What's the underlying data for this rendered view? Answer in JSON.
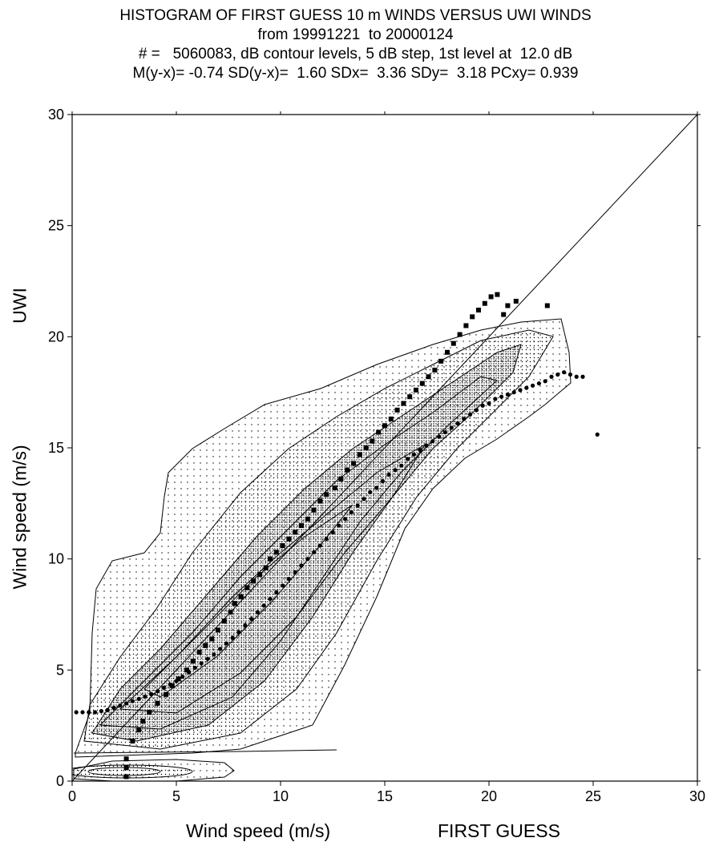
{
  "chart_data": {
    "type": "scatter",
    "title": "HISTOGRAM OF FIRST GUESS 10 m WINDS VERSUS UWI WINDS",
    "subtitle_lines": [
      "from 19991221  to 20000124",
      "# =   5060083, dB contour levels, 5 dB step, 1st level at  12.0 dB",
      "M(y-x)= -0.74 SD(y-x)=  1.60 SDx=  3.36 SDy=  3.18 PCxy= 0.939"
    ],
    "xlabel": "Wind speed (m/s)",
    "xlabel_extra": "FIRST GUESS",
    "ylabel": "Wind speed (m/s)",
    "ylabel_extra": "UWI",
    "xlim": [
      0,
      30
    ],
    "ylim": [
      0,
      30
    ],
    "x_ticks": [
      "0",
      "5",
      "10",
      "15",
      "20",
      "25",
      "30"
    ],
    "y_ticks": [
      "0",
      "5",
      "10",
      "15",
      "20",
      "25",
      "30"
    ],
    "grid": false,
    "series": [
      {
        "marker": "square",
        "x": [
          2.6,
          2.6,
          2.6,
          2.9,
          3.2,
          3.4,
          3.7,
          4.1,
          4.5,
          4.8,
          5.1,
          5.5,
          5.8,
          6.1,
          6.4,
          6.7,
          7.0,
          7.3,
          7.6,
          7.8,
          8.1,
          8.4,
          8.7,
          9.0,
          9.3,
          9.5,
          9.8,
          10.1,
          10.4,
          10.7,
          11.0,
          11.3,
          11.6,
          11.9,
          12.2,
          12.6,
          12.9,
          13.2,
          13.5,
          13.8,
          14.1,
          14.4,
          14.7,
          15.0,
          15.3,
          15.6,
          15.9,
          16.2,
          16.5,
          16.8,
          17.1,
          17.4,
          17.7,
          18.0,
          18.3,
          18.6,
          18.9,
          19.2,
          19.5,
          19.8,
          20.1,
          20.4,
          20.7,
          20.9,
          21.3,
          22.8
        ],
        "y": [
          0.2,
          0.6,
          1.0,
          1.8,
          2.3,
          2.7,
          3.1,
          3.5,
          3.9,
          4.3,
          4.6,
          5.0,
          5.4,
          5.8,
          6.1,
          6.4,
          6.8,
          7.2,
          7.6,
          8.0,
          8.3,
          8.7,
          9.0,
          9.3,
          9.6,
          10.0,
          10.3,
          10.6,
          10.9,
          11.2,
          11.5,
          11.8,
          12.2,
          12.6,
          12.9,
          13.2,
          13.6,
          14.0,
          14.3,
          14.7,
          15.0,
          15.3,
          15.7,
          16.0,
          16.3,
          16.7,
          17.0,
          17.3,
          17.6,
          17.9,
          18.2,
          18.5,
          18.9,
          19.3,
          19.7,
          20.1,
          20.5,
          20.9,
          21.2,
          21.5,
          21.8,
          21.9,
          21.0,
          21.4,
          21.6,
          21.4
        ]
      },
      {
        "marker": "circle",
        "x": [
          0.2,
          0.5,
          0.8,
          1.1,
          1.4,
          1.7,
          2.0,
          2.3,
          2.6,
          2.9,
          3.2,
          3.5,
          3.8,
          4.1,
          4.4,
          4.7,
          5.0,
          5.3,
          5.6,
          5.9,
          6.2,
          6.5,
          6.8,
          7.1,
          7.4,
          7.7,
          8.0,
          8.3,
          8.6,
          8.9,
          9.2,
          9.5,
          9.8,
          10.1,
          10.4,
          10.7,
          11.0,
          11.3,
          11.6,
          11.9,
          12.2,
          12.5,
          12.8,
          13.1,
          13.4,
          13.7,
          14.0,
          14.3,
          14.6,
          14.9,
          15.2,
          15.5,
          15.8,
          16.1,
          16.4,
          16.7,
          17.0,
          17.3,
          17.6,
          17.9,
          18.2,
          18.5,
          18.8,
          19.1,
          19.4,
          19.7,
          20.0,
          20.3,
          20.6,
          20.9,
          21.2,
          21.5,
          21.8,
          22.1,
          22.4,
          22.7,
          23.0,
          23.3,
          23.6,
          23.9,
          24.2,
          24.5,
          25.2
        ],
        "y": [
          3.1,
          3.1,
          3.1,
          3.1,
          3.15,
          3.2,
          3.3,
          3.4,
          3.5,
          3.6,
          3.7,
          3.8,
          3.9,
          4.05,
          4.2,
          4.35,
          4.5,
          4.7,
          4.9,
          5.1,
          5.3,
          5.5,
          5.7,
          5.95,
          6.2,
          6.45,
          6.7,
          7.0,
          7.3,
          7.6,
          7.9,
          8.2,
          8.5,
          8.8,
          9.1,
          9.4,
          9.7,
          10.0,
          10.3,
          10.6,
          10.9,
          11.2,
          11.5,
          11.8,
          12.1,
          12.4,
          12.7,
          13.0,
          13.2,
          13.5,
          13.8,
          14.0,
          14.2,
          14.5,
          14.7,
          14.9,
          15.1,
          15.3,
          15.5,
          15.7,
          15.9,
          16.1,
          16.3,
          16.5,
          16.7,
          16.9,
          17.0,
          17.2,
          17.3,
          17.4,
          17.5,
          17.6,
          17.7,
          17.8,
          17.9,
          18.0,
          18.2,
          18.3,
          18.4,
          18.3,
          18.2,
          18.2,
          15.6
        ]
      }
    ],
    "reference_line": {
      "x": [
        0,
        30
      ],
      "y": [
        0,
        30
      ]
    },
    "contour_levels": {
      "first_db": 12.0,
      "step_db": 5
    }
  }
}
